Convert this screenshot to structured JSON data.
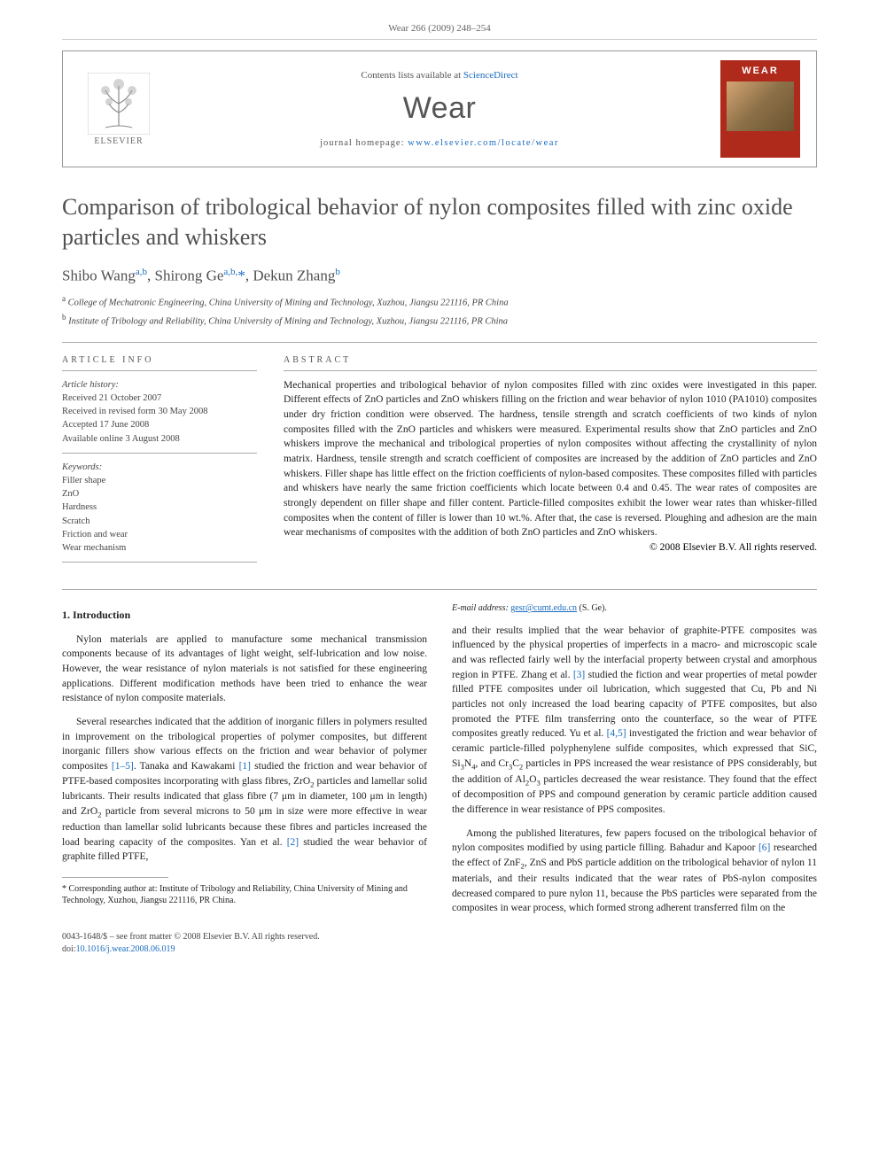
{
  "header": {
    "citation": "Wear 266 (2009) 248–254"
  },
  "banner": {
    "publisher_label": "ELSEVIER",
    "contents_prefix": "Contents lists available at ",
    "contents_link": "ScienceDirect",
    "journal_name": "Wear",
    "homepage_prefix": "journal homepage: ",
    "homepage_url": "www.elsevier.com/locate/wear",
    "cover_title": "WEAR"
  },
  "article": {
    "title": "Comparison of tribological behavior of nylon composites filled with zinc oxide particles and whiskers",
    "authors_html": "Shibo Wang<sup>a,b</sup>, Shirong Ge<sup>a,b,</sup><span class='star'>*</span>, Dekun Zhang<sup>b</sup>",
    "affiliations": [
      {
        "sup": "a",
        "text": "College of Mechatronic Engineering, China University of Mining and Technology, Xuzhou, Jiangsu 221116, PR China"
      },
      {
        "sup": "b",
        "text": "Institute of Tribology and Reliability, China University of Mining and Technology, Xuzhou, Jiangsu 221116, PR China"
      }
    ]
  },
  "info": {
    "heading": "ARTICLE INFO",
    "history_label": "Article history:",
    "history": [
      "Received 21 October 2007",
      "Received in revised form 30 May 2008",
      "Accepted 17 June 2008",
      "Available online 3 August 2008"
    ],
    "keywords_label": "Keywords:",
    "keywords": [
      "Filler shape",
      "ZnO",
      "Hardness",
      "Scratch",
      "Friction and wear",
      "Wear mechanism"
    ]
  },
  "abstract": {
    "heading": "ABSTRACT",
    "text": "Mechanical properties and tribological behavior of nylon composites filled with zinc oxides were investigated in this paper. Different effects of ZnO particles and ZnO whiskers filling on the friction and wear behavior of nylon 1010 (PA1010) composites under dry friction condition were observed. The hardness, tensile strength and scratch coefficients of two kinds of nylon composites filled with the ZnO particles and whiskers were measured. Experimental results show that ZnO particles and ZnO whiskers improve the mechanical and tribological properties of nylon composites without affecting the crystallinity of nylon matrix. Hardness, tensile strength and scratch coefficient of composites are increased by the addition of ZnO particles and ZnO whiskers. Filler shape has little effect on the friction coefficients of nylon-based composites. These composites filled with particles and whiskers have nearly the same friction coefficients which locate between 0.4 and 0.45. The wear rates of composites are strongly dependent on filler shape and filler content. Particle-filled composites exhibit the lower wear rates than whisker-filled composites when the content of filler is lower than 10 wt.%. After that, the case is reversed. Ploughing and adhesion are the main wear mechanisms of composites with the addition of both ZnO particles and ZnO whiskers.",
    "copyright": "© 2008 Elsevier B.V. All rights reserved."
  },
  "body": {
    "section_heading": "1. Introduction",
    "p1": "Nylon materials are applied to manufacture some mechanical transmission components because of its advantages of light weight, self-lubrication and low noise. However, the wear resistance of nylon materials is not satisfied for these engineering applications. Different modification methods have been tried to enhance the wear resistance of nylon composite materials.",
    "p2a": "Several researches indicated that the addition of inorganic fillers in polymers resulted in improvement on the tribological properties of polymer composites, but different inorganic fillers show various effects on the friction and wear behavior of polymer composites ",
    "ref1": "[1–5]",
    "p2b": ". Tanaka and Kawakami ",
    "ref2": "[1]",
    "p2c": " studied the friction and wear behavior of PTFE-based composites incorporating with glass fibres, ZrO",
    "p2d": " particles and lamellar solid lubricants. Their results indicated that glass fibre (7 μm in diameter, 100 μm in length) and ZrO",
    "p2e": " particle from several microns to 50 μm in size were more effective in wear reduction than lamellar solid lubricants because these fibres and particles increased the load bearing capacity of the composites. Yan et al. ",
    "ref3": "[2]",
    "p2f": " studied the wear behavior of graphite filled PTFE,",
    "p3a": "and their results implied that the wear behavior of graphite-PTFE composites was influenced by the physical properties of imperfects in a macro- and microscopic scale and was reflected fairly well by the interfacial property between crystal and amorphous region in PTFE. Zhang et al. ",
    "ref4": "[3]",
    "p3b": " studied the fiction and wear properties of metal powder filled PTFE composites under oil lubrication, which suggested that Cu, Pb and Ni particles not only increased the load bearing capacity of PTFE composites, but also promoted the PTFE film transferring onto the counterface, so the wear of PTFE composites greatly reduced. Yu et al. ",
    "ref5": "[4,5]",
    "p3c": " investigated the friction and wear behavior of ceramic particle-filled polyphenylene sulfide composites, which expressed that SiC, Si",
    "p3d": "N",
    "p3e": ", and Cr",
    "p3f": "C",
    "p3g": " particles in PPS increased the wear resistance of PPS considerably, but the addition of Al",
    "p3h": "O",
    "p3i": " particles decreased the wear resistance. They found that the effect of decomposition of PPS and compound generation by ceramic particle addition caused the difference in wear resistance of PPS composites.",
    "p4a": "Among the published literatures, few papers focused on the tribological behavior of nylon composites modified by using particle filling. Bahadur and Kapoor ",
    "ref6": "[6]",
    "p4b": " researched the effect of ZnF",
    "p4c": ", ZnS and PbS particle addition on the tribological behavior of nylon 11 materials, and their results indicated that the wear rates of PbS-nylon composites decreased compared to pure nylon 11, because the PbS particles were separated from the composites in wear process, which formed strong adherent transferred film on the"
  },
  "footnote": {
    "corr_label": "* Corresponding author at: ",
    "corr_text": "Institute of Tribology and Reliability, China University of Mining and Technology, Xuzhou, Jiangsu 221116, PR China.",
    "email_label": "E-mail address: ",
    "email": "gesr@cumt.edu.cn",
    "email_suffix": " (S. Ge)."
  },
  "footer": {
    "line1": "0043-1648/$ – see front matter © 2008 Elsevier B.V. All rights reserved.",
    "doi_prefix": "doi:",
    "doi": "10.1016/j.wear.2008.06.019"
  }
}
